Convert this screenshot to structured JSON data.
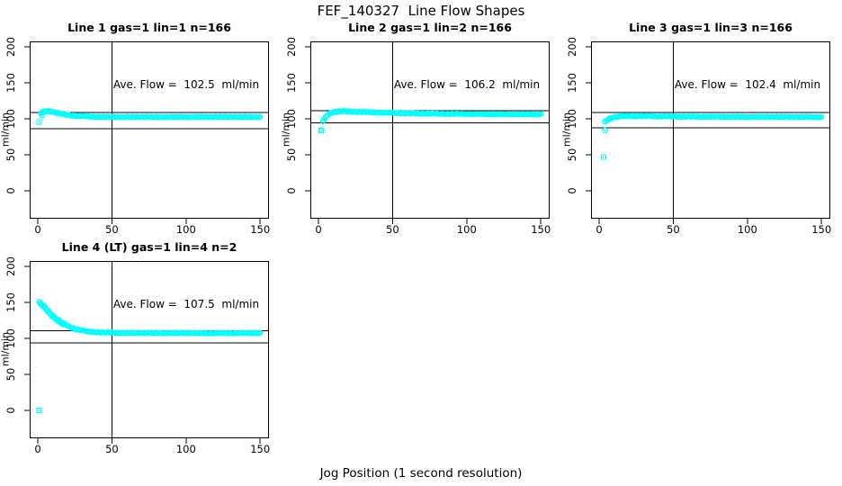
{
  "figure": {
    "title": "FEF_140327  Line Flow Shapes",
    "xlabel": "Jog Position (1 second resolution)",
    "marker_color": "#00FFFF",
    "line_color": "#000000",
    "background": "#ffffff"
  },
  "chart_data": [
    {
      "type": "scatter",
      "title": "Line 1 gas=1 lin=1 n=166",
      "annotation": "Ave. Flow =  102.5  ml/min",
      "ave_flow_ml_min": 102.5,
      "gas": 1,
      "lin": 1,
      "n": 166,
      "xlabel": "",
      "ylabel": "ml/min",
      "x_ticks": [
        0,
        50,
        100,
        150
      ],
      "y_ticks": [
        0,
        50,
        100,
        150,
        200
      ],
      "xlim": [
        -5.5,
        156.5
      ],
      "ylim": [
        -38,
        207
      ],
      "vline_x": 50,
      "hlines": [
        109,
        86
      ],
      "series_keypoints": [
        [
          2,
          107.5
        ],
        [
          3,
          109
        ],
        [
          5,
          110.5
        ],
        [
          7,
          110.8
        ],
        [
          9,
          110.3
        ],
        [
          12,
          108.6
        ],
        [
          16,
          106.8
        ],
        [
          20,
          105.4
        ],
        [
          25,
          104.3
        ],
        [
          30,
          103.5
        ],
        [
          36,
          103
        ],
        [
          42,
          102.7
        ],
        [
          50,
          102.5
        ],
        [
          60,
          102.4
        ],
        [
          70,
          102.5
        ],
        [
          80,
          102.4
        ],
        [
          90,
          102.5
        ],
        [
          100,
          102.4
        ],
        [
          110,
          102.5
        ],
        [
          120,
          102.5
        ],
        [
          130,
          102.6
        ],
        [
          140,
          102.5
        ],
        [
          150,
          102.5
        ]
      ],
      "outliers": [
        [
          1,
          95.5,
          "s"
        ],
        [
          3,
          104.8,
          "c"
        ]
      ]
    },
    {
      "type": "scatter",
      "title": "Line 2 gas=1 lin=2 n=166",
      "annotation": "Ave. Flow =  106.2  ml/min",
      "ave_flow_ml_min": 106.2,
      "gas": 1,
      "lin": 2,
      "n": 166,
      "xlabel": "",
      "ylabel": "ml/min",
      "x_ticks": [
        0,
        50,
        100,
        150
      ],
      "y_ticks": [
        0,
        50,
        100,
        150,
        200
      ],
      "xlim": [
        -5.5,
        156.5
      ],
      "ylim": [
        -38,
        207
      ],
      "vline_x": 50,
      "hlines": [
        111,
        94.5
      ],
      "series_keypoints": [
        [
          3,
          96.5
        ],
        [
          4,
          99.5
        ],
        [
          5,
          102.5
        ],
        [
          6,
          105
        ],
        [
          7,
          106.8
        ],
        [
          8,
          108
        ],
        [
          10,
          109.3
        ],
        [
          12,
          110
        ],
        [
          16,
          110.4
        ],
        [
          20,
          110.3
        ],
        [
          26,
          109.8
        ],
        [
          32,
          109.3
        ],
        [
          40,
          108.7
        ],
        [
          50,
          108.2
        ],
        [
          60,
          107.7
        ],
        [
          70,
          107.4
        ],
        [
          80,
          107.1
        ],
        [
          90,
          106.9
        ],
        [
          100,
          106.7
        ],
        [
          110,
          106.5
        ],
        [
          120,
          106.4
        ],
        [
          130,
          106.3
        ],
        [
          140,
          106.2
        ],
        [
          150,
          106.3
        ]
      ],
      "outliers": [
        [
          2,
          84,
          "s"
        ]
      ]
    },
    {
      "type": "scatter",
      "title": "Line 3 gas=1 lin=3 n=166",
      "annotation": "Ave. Flow =  102.4  ml/min",
      "ave_flow_ml_min": 102.4,
      "gas": 1,
      "lin": 3,
      "n": 166,
      "xlabel": "",
      "ylabel": "ml/min",
      "x_ticks": [
        0,
        50,
        100,
        150
      ],
      "y_ticks": [
        0,
        50,
        100,
        150,
        200
      ],
      "xlim": [
        -5.5,
        156.5
      ],
      "ylim": [
        -38,
        207
      ],
      "vline_x": 50,
      "hlines": [
        109,
        87.5
      ],
      "series_keypoints": [
        [
          4,
          95.5
        ],
        [
          5,
          97.5
        ],
        [
          6,
          99.2
        ],
        [
          7,
          100.4
        ],
        [
          8,
          101.3
        ],
        [
          10,
          102.3
        ],
        [
          12,
          102.9
        ],
        [
          16,
          103.4
        ],
        [
          20,
          103.6
        ],
        [
          26,
          103.7
        ],
        [
          32,
          103.6
        ],
        [
          40,
          103.4
        ],
        [
          50,
          103.2
        ],
        [
          60,
          103
        ],
        [
          70,
          102.9
        ],
        [
          80,
          102.8
        ],
        [
          90,
          102.7
        ],
        [
          100,
          102.6
        ],
        [
          110,
          102.6
        ],
        [
          120,
          102.5
        ],
        [
          130,
          102.5
        ],
        [
          140,
          102.4
        ],
        [
          150,
          102.4
        ]
      ],
      "outliers": [
        [
          3,
          47,
          "s"
        ],
        [
          4,
          84,
          "c"
        ]
      ]
    },
    {
      "type": "scatter",
      "title": "Line 4 (LT) gas=1 lin=4 n=2",
      "annotation": "Ave. Flow =  107.5  ml/min",
      "ave_flow_ml_min": 107.5,
      "gas": 1,
      "lin": 4,
      "n": 2,
      "xlabel": "",
      "ylabel": "ml/min",
      "x_ticks": [
        0,
        50,
        100,
        150
      ],
      "y_ticks": [
        0,
        50,
        100,
        150,
        200
      ],
      "xlim": [
        -5.5,
        156.5
      ],
      "ylim": [
        -38,
        207
      ],
      "vline_x": 50,
      "hlines": [
        110.5,
        93.5
      ],
      "series_keypoints": [
        [
          1,
          150
        ],
        [
          2,
          148.5
        ],
        [
          3,
          146.8
        ],
        [
          4,
          144.8
        ],
        [
          5,
          142.6
        ],
        [
          6,
          140.3
        ],
        [
          7,
          138
        ],
        [
          8,
          135.8
        ],
        [
          10,
          131.8
        ],
        [
          12,
          128.2
        ],
        [
          14,
          125
        ],
        [
          16,
          122.2
        ],
        [
          18,
          119.7
        ],
        [
          20,
          117.5
        ],
        [
          23,
          114.8
        ],
        [
          26,
          112.8
        ],
        [
          30,
          110.9
        ],
        [
          34,
          109.6
        ],
        [
          38,
          108.8
        ],
        [
          44,
          108.2
        ],
        [
          50,
          107.9
        ],
        [
          60,
          107.6
        ],
        [
          70,
          107.5
        ],
        [
          80,
          107.4
        ],
        [
          90,
          107.4
        ],
        [
          100,
          107.5
        ],
        [
          110,
          107.3
        ],
        [
          120,
          107.2
        ],
        [
          130,
          107.3
        ],
        [
          140,
          107.4
        ],
        [
          150,
          107.5
        ]
      ],
      "outliers": [
        [
          1,
          0,
          "s"
        ],
        [
          1,
          0,
          "c"
        ]
      ]
    }
  ]
}
